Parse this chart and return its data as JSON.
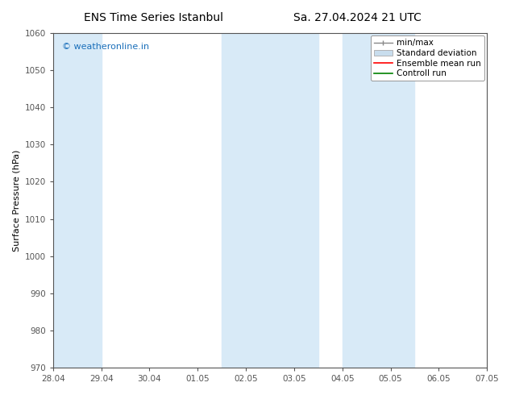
{
  "title_left": "ENS Time Series Istanbul",
  "title_right": "Sa. 27.04.2024 21 UTC",
  "ylabel": "Surface Pressure (hPa)",
  "ylim": [
    970,
    1060
  ],
  "yticks": [
    970,
    980,
    990,
    1000,
    1010,
    1020,
    1030,
    1040,
    1050,
    1060
  ],
  "xtick_labels": [
    "28.04",
    "29.04",
    "30.04",
    "01.05",
    "02.05",
    "03.05",
    "04.05",
    "05.05",
    "06.05",
    "07.05"
  ],
  "xtick_positions": [
    0,
    1,
    2,
    3,
    4,
    5,
    6,
    7,
    8,
    9
  ],
  "xlim": [
    0,
    9
  ],
  "shaded_bands": [
    {
      "xmin": -0.5,
      "xmax": 1.0
    },
    {
      "xmin": 3.5,
      "xmax": 5.5
    },
    {
      "xmin": 6.0,
      "xmax": 7.5
    }
  ],
  "shade_color": "#d8eaf7",
  "watermark_text": "© weatheronline.in",
  "watermark_color": "#1a6fba",
  "watermark_fontsize": 8,
  "legend_items": [
    {
      "label": "min/max",
      "color": "#888888",
      "lw": 1.0,
      "style": "minmax"
    },
    {
      "label": "Standard deviation",
      "color": "#c8dded",
      "lw": 6,
      "style": "rect"
    },
    {
      "label": "Ensemble mean run",
      "color": "red",
      "lw": 1.2,
      "style": "line"
    },
    {
      "label": "Controll run",
      "color": "green",
      "lw": 1.2,
      "style": "line"
    }
  ],
  "bg_color": "white",
  "spine_color": "#555555",
  "tick_color": "#555555",
  "font_family": "DejaVu Sans",
  "title_fontsize": 10,
  "axis_fontsize": 8,
  "tick_fontsize": 7.5,
  "legend_fontsize": 7.5
}
